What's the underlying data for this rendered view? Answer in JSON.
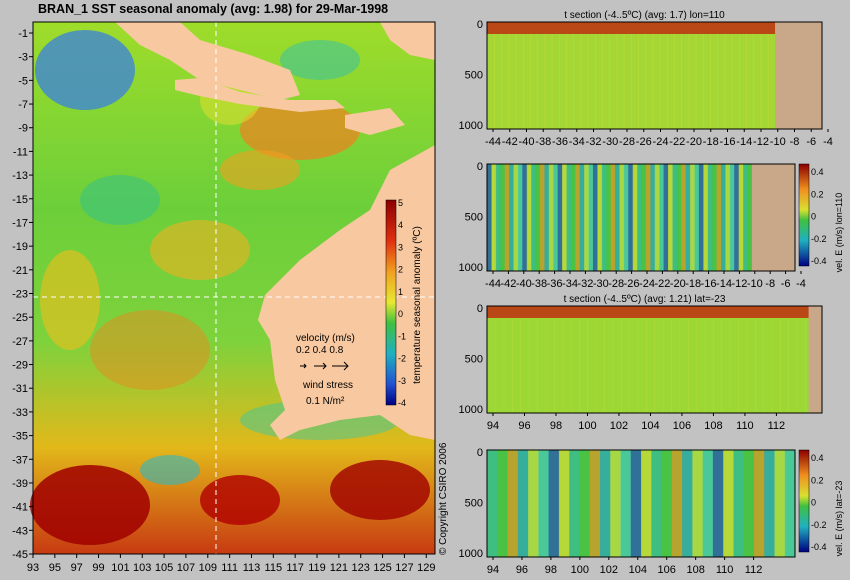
{
  "main_map": {
    "title": "BRAN_1  SST seasonal anomaly  (avg: 1.98) for 29-Mar-1998",
    "y_ticks": [
      "-1",
      "-3",
      "-5",
      "-7",
      "-9",
      "-11",
      "-13",
      "-15",
      "-17",
      "-19",
      "-21",
      "-23",
      "-25",
      "-27",
      "-29",
      "-31",
      "-33",
      "-35",
      "-37",
      "-39",
      "-41",
      "-43",
      "-45"
    ],
    "x_ticks": [
      "93",
      "95",
      "97",
      "99",
      "101",
      "103",
      "105",
      "107",
      "109",
      "111",
      "113",
      "115",
      "117",
      "119",
      "121",
      "123",
      "125",
      "127",
      "129"
    ],
    "colorbar_label": "temperature seasonal anomaly (ºC)",
    "colorbar_ticks": [
      "5",
      "4",
      "3",
      "2",
      "1",
      "0",
      "-1",
      "-2",
      "-3",
      "-4"
    ],
    "velocity_legend": {
      "title": "velocity (m/s)",
      "values": "0.2 0.4 0.8"
    },
    "wind_legend": {
      "title": "wind stress",
      "value": "0.1  N/m²"
    },
    "copyright": "© Copyright CSIRO 2006"
  },
  "panels": [
    {
      "title": "t section (-4..5ºC) (avg: 1.7) lon=110",
      "y_ticks": [
        "0",
        "500",
        "1000"
      ],
      "x_ticks": [
        "-44",
        "-42",
        "-40",
        "-38",
        "-36",
        "-34",
        "-32",
        "-30",
        "-28",
        "-26",
        "-24",
        "-22",
        "-20",
        "-18",
        "-16",
        "-14",
        "-12",
        "-10",
        "-8",
        "-6",
        "-4"
      ]
    },
    {
      "title": "",
      "y_ticks": [
        "0",
        "500",
        "1000"
      ],
      "x_ticks": [
        "-44",
        "-42",
        "-40",
        "-38",
        "-36",
        "-34",
        "-32",
        "-30",
        "-28",
        "-26",
        "-24",
        "-22",
        "-20",
        "-18",
        "-16",
        "-14",
        "-12",
        "-10",
        "-8",
        "-6",
        "-4"
      ],
      "colorbar_label": "vel. E (m/s) lon=110",
      "colorbar_ticks": [
        "0.4",
        "0.2",
        "0",
        "-0.2",
        "-0.4"
      ]
    },
    {
      "title": "t section (-4..5ºC) (avg: 1.21) lat=-23",
      "y_ticks": [
        "0",
        "500",
        "1000"
      ],
      "x_ticks": [
        "94",
        "96",
        "98",
        "100",
        "102",
        "104",
        "106",
        "108",
        "110",
        "112"
      ]
    },
    {
      "title": "",
      "y_ticks": [
        "0",
        "500",
        "1000"
      ],
      "x_ticks": [
        "94",
        "96",
        "98",
        "100",
        "102",
        "104",
        "106",
        "108",
        "110",
        "112"
      ],
      "colorbar_label": "vel. E (m/s) lat=-23",
      "colorbar_ticks": [
        "0.4",
        "0.2",
        "0",
        "-0.2",
        "-0.4"
      ]
    }
  ],
  "chart_data": [
    {
      "type": "heatmap",
      "title": "BRAN_1  SST seasonal anomaly  (avg: 1.98) for 29-Mar-1998",
      "xlim": [
        93,
        130
      ],
      "ylim": [
        -45,
        0
      ],
      "colorbar_range": [
        -4,
        5
      ],
      "colorbar_label": "temperature seasonal anomaly (ºC)"
    },
    {
      "type": "heatmap",
      "title": "t section (-4..5ºC) (avg: 1.7) lon=110",
      "xlim": [
        -45,
        -3
      ],
      "ylim": [
        1050,
        0
      ]
    },
    {
      "type": "heatmap",
      "xlim": [
        -45,
        -3
      ],
      "ylim": [
        1050,
        0
      ],
      "colorbar_range": [
        -0.5,
        0.5
      ],
      "colorbar_label": "vel. E (m/s) lon=110"
    },
    {
      "type": "heatmap",
      "title": "t section (-4..5ºC) (avg: 1.21) lat=-23",
      "xlim": [
        93,
        114
      ],
      "ylim": [
        1050,
        0
      ]
    },
    {
      "type": "heatmap",
      "xlim": [
        93,
        114
      ],
      "ylim": [
        1050,
        0
      ],
      "colorbar_range": [
        -0.5,
        0.5
      ],
      "colorbar_label": "vel. E (m/s) lat=-23"
    }
  ]
}
